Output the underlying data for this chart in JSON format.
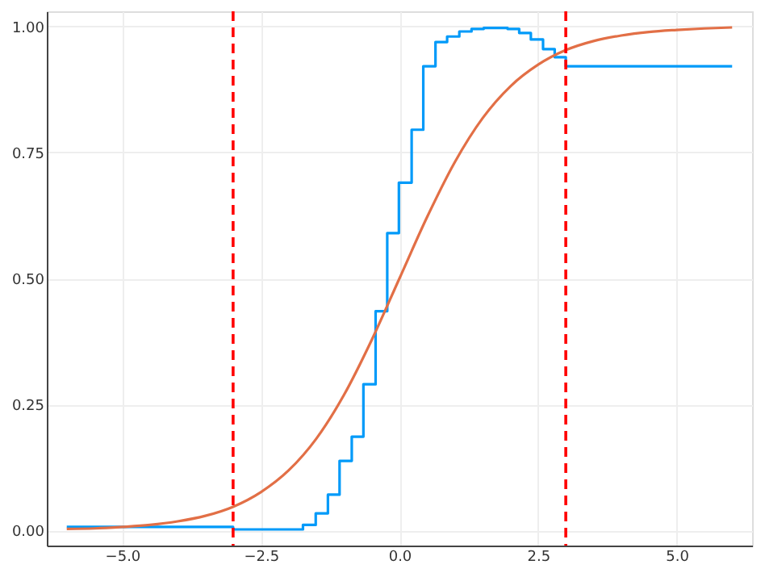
{
  "chart_data": {
    "type": "line",
    "xlim": [
      -6.36,
      6.36
    ],
    "ylim": [
      -0.03,
      1.03
    ],
    "xticks": [
      {
        "value": -5,
        "label": "−5.0"
      },
      {
        "value": -2.5,
        "label": "−2.5"
      },
      {
        "value": 0,
        "label": "0.0"
      },
      {
        "value": 2.5,
        "label": "2.5"
      },
      {
        "value": 5,
        "label": "5.0"
      }
    ],
    "yticks": [
      {
        "value": 0,
        "label": "0.00"
      },
      {
        "value": 0.25,
        "label": "0.25"
      },
      {
        "value": 0.5,
        "label": "0.50"
      },
      {
        "value": 0.75,
        "label": "0.75"
      },
      {
        "value": 1,
        "label": "1.00"
      }
    ],
    "grid": true,
    "series": [
      {
        "type": "step",
        "color": "#009af9",
        "x": [
          -6,
          -3,
          -1.74,
          -1.51,
          -1.29,
          -1.08,
          -0.86,
          -0.65,
          -0.43,
          -0.22,
          -0.01,
          0.22,
          0.43,
          0.65,
          0.86,
          1.08,
          1.3,
          1.52,
          1.73,
          1.95,
          2.16,
          2.37,
          2.59,
          2.8,
          3.0,
          6.0
        ],
        "values": [
          0.007,
          0.002,
          0.011,
          0.034,
          0.071,
          0.138,
          0.186,
          0.29,
          0.435,
          0.59,
          0.69,
          0.795,
          0.921,
          0.969,
          0.98,
          0.99,
          0.995,
          0.997,
          0.997,
          0.995,
          0.987,
          0.974,
          0.955,
          0.939,
          0.921,
          0.921
        ]
      },
      {
        "color": "#e26f46",
        "x": [
          -6,
          -5.5,
          -5,
          -4.5,
          -4,
          -3.5,
          -3,
          -2.5,
          -2,
          -1.5,
          -1,
          -0.5,
          0,
          0.5,
          1,
          1.5,
          2,
          2.5,
          3,
          3.5,
          4,
          4.5,
          5,
          5.5,
          6
        ],
        "values": [
          0.003,
          0.004,
          0.007,
          0.011,
          0.018,
          0.029,
          0.047,
          0.076,
          0.119,
          0.182,
          0.269,
          0.378,
          0.5,
          0.622,
          0.731,
          0.818,
          0.881,
          0.924,
          0.953,
          0.971,
          0.982,
          0.989,
          0.993,
          0.996,
          0.998
        ]
      }
    ],
    "ref_lines": [
      {
        "axis": "x",
        "value": -3,
        "color": "#ff0000",
        "line_style": "dashed"
      },
      {
        "axis": "x",
        "value": 3,
        "color": "#ff0000",
        "line_style": "dashed"
      }
    ]
  }
}
